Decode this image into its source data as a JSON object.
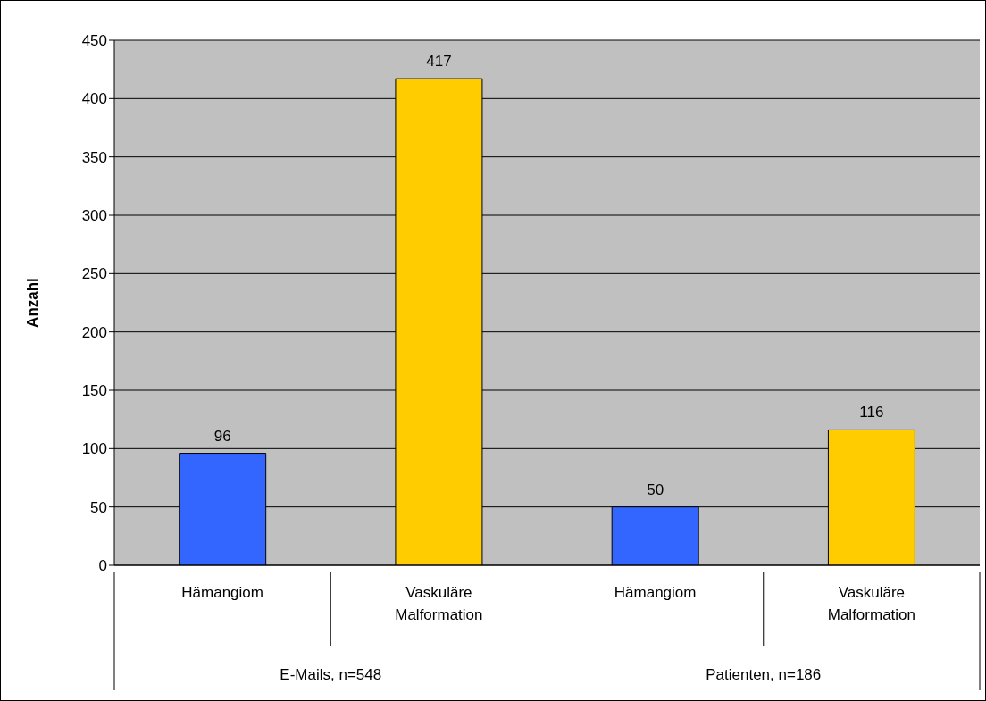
{
  "chart_data": {
    "type": "bar",
    "ylabel": "Anzahl",
    "categories": [
      "Hämangiom",
      "Vaskuläre Malformation",
      "Hämangiom",
      "Vaskuläre Malformation"
    ],
    "values": [
      96,
      417,
      50,
      116
    ],
    "colors": [
      "#3366ff",
      "#ffcc00",
      "#3366ff",
      "#ffcc00"
    ],
    "annotations": [
      "E-Mails, n=548",
      "Patienten, n=186"
    ],
    "ylim": [
      0,
      450
    ],
    "yticks": [
      0,
      50,
      100,
      150,
      200,
      250,
      300,
      350,
      400,
      450
    ],
    "grid": "y",
    "data_labels": true,
    "legend": false
  }
}
